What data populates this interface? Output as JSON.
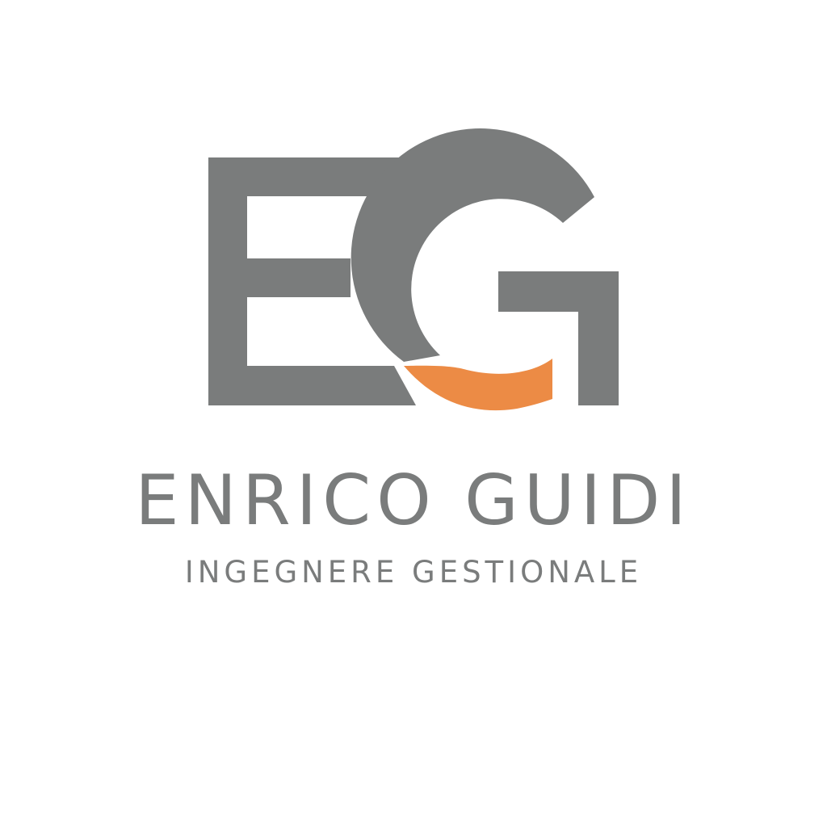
{
  "logo": {
    "monogram_letters": "EG",
    "colors": {
      "primary": "#7a7c7c",
      "accent": "#ec8b45",
      "background": "#ffffff"
    }
  },
  "name": "ENRICO GUIDI",
  "subtitle": "INGEGNERE GESTIONALE"
}
